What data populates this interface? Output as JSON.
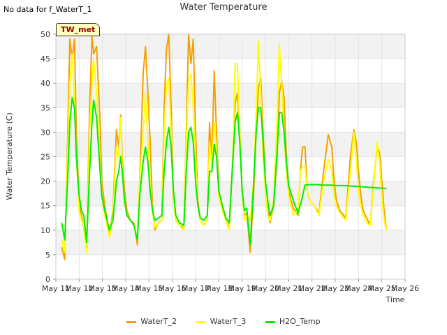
{
  "header": {
    "nodata": "No data for f_WaterT_1",
    "title": "Water Temperature",
    "badge": "TW_met"
  },
  "colors": {
    "WaterT_2": "#f5a000",
    "WaterT_3": "#ffff00",
    "H2O_Temp": "#00ee00"
  },
  "chart_data": {
    "type": "line",
    "title": "Water Temperature",
    "xlabel": "Time",
    "ylabel": "Water Temperature (C)",
    "xlim": [
      11,
      26
    ],
    "ylim": [
      0,
      50
    ],
    "xticks": [
      11,
      12,
      13,
      14,
      15,
      16,
      17,
      18,
      19,
      20,
      21,
      22,
      23,
      24,
      25,
      26
    ],
    "xtick_labels": [
      "May 11",
      "May 12",
      "May 13",
      "May 14",
      "May 15",
      "May 16",
      "May 17",
      "May 18",
      "May 19",
      "May 20",
      "May 21",
      "May 22",
      "May 23",
      "May 24",
      "May 25",
      "May 26"
    ],
    "yticks": [
      0,
      5,
      10,
      15,
      20,
      25,
      30,
      35,
      40,
      45,
      50
    ],
    "grid": true,
    "legend": "bottom",
    "series": [
      {
        "name": "WaterT_2",
        "x": [
          11.25,
          11.38,
          11.5,
          11.6,
          11.7,
          11.8,
          11.88,
          12.0,
          12.1,
          12.2,
          12.32,
          12.45,
          12.55,
          12.62,
          12.75,
          12.9,
          12.97,
          13.1,
          13.3,
          13.45,
          13.6,
          13.7,
          13.78,
          13.85,
          13.95,
          14.05,
          14.2,
          14.35,
          14.5,
          14.6,
          14.75,
          14.85,
          14.95,
          15.05,
          15.15,
          15.25,
          15.4,
          15.55,
          15.65,
          15.75,
          15.85,
          15.95,
          16.05,
          16.15,
          16.3,
          16.5,
          16.6,
          16.7,
          16.8,
          16.9,
          17.0,
          17.1,
          17.2,
          17.35,
          17.5,
          17.6,
          17.7,
          17.8,
          17.9,
          18.0,
          18.15,
          18.3,
          18.45,
          18.6,
          18.7,
          18.8,
          18.9,
          19.0,
          19.1,
          19.2,
          19.35,
          19.5,
          19.6,
          19.7,
          19.8,
          19.9,
          20.0,
          20.1,
          20.2,
          20.35,
          20.5,
          20.6,
          20.7,
          20.8,
          20.9,
          21.0,
          21.1,
          21.2,
          21.4,
          21.5,
          21.6,
          21.7,
          21.8,
          21.9,
          22.1,
          22.3,
          22.5,
          22.7,
          22.85,
          22.95,
          23.05,
          23.2,
          23.45,
          23.65,
          23.8,
          23.9,
          24.0,
          24.1,
          24.2,
          24.35,
          24.5,
          24.65,
          24.8,
          24.9,
          25.0,
          25.1,
          25.2
        ],
        "y": [
          6.5,
          4.0,
          28.0,
          49.0,
          45.0,
          49.0,
          30.0,
          15.0,
          13.0,
          10.5,
          6.0,
          35.0,
          49.5,
          46.0,
          47.5,
          32.0,
          20.0,
          15.0,
          9.0,
          14.0,
          30.5,
          27.0,
          33.5,
          25.0,
          18.0,
          14.0,
          12.0,
          11.5,
          7.0,
          20.0,
          42.0,
          47.5,
          38.0,
          28.0,
          15.0,
          10.0,
          11.5,
          12.0,
          35.0,
          47.0,
          50.0,
          35.0,
          17.0,
          12.0,
          11.0,
          10.5,
          30.0,
          50.0,
          44.0,
          49.0,
          30.0,
          16.0,
          12.0,
          11.0,
          12.0,
          32.0,
          24.0,
          42.5,
          30.0,
          18.0,
          15.0,
          12.0,
          10.5,
          25.0,
          36.0,
          38.0,
          30.0,
          18.0,
          13.0,
          13.5,
          5.5,
          18.0,
          30.0,
          39.0,
          41.0,
          30.0,
          20.0,
          14.0,
          11.5,
          15.0,
          25.0,
          38.0,
          40.5,
          37.0,
          25.0,
          18.0,
          16.0,
          14.5,
          13.0,
          22.0,
          27.0,
          27.0,
          18.0,
          16.0,
          15.0,
          13.5,
          22.0,
          29.5,
          27.0,
          20.0,
          16.0,
          14.0,
          12.5,
          25.0,
          30.5,
          28.0,
          22.0,
          17.0,
          14.0,
          12.5,
          11.0,
          20.0,
          27.0,
          26.0,
          20.0,
          14.0,
          10.0
        ]
      },
      {
        "name": "WaterT_3",
        "x": [
          11.25,
          11.38,
          11.5,
          11.6,
          11.7,
          11.8,
          11.88,
          12.0,
          12.1,
          12.2,
          12.32,
          12.45,
          12.55,
          12.62,
          12.75,
          12.9,
          12.97,
          13.1,
          13.3,
          13.45,
          13.6,
          13.7,
          13.78,
          13.85,
          13.95,
          14.05,
          14.2,
          14.35,
          14.5,
          14.6,
          14.75,
          14.85,
          14.95,
          15.05,
          15.15,
          15.25,
          15.4,
          15.55,
          15.65,
          15.75,
          15.85,
          15.95,
          16.05,
          16.15,
          16.3,
          16.5,
          16.6,
          16.7,
          16.8,
          16.9,
          17.0,
          17.1,
          17.2,
          17.35,
          17.5,
          17.6,
          17.7,
          17.8,
          17.9,
          18.0,
          18.15,
          18.3,
          18.45,
          18.6,
          18.7,
          18.8,
          18.9,
          19.0,
          19.1,
          19.2,
          19.35,
          19.5,
          19.6,
          19.7,
          19.8,
          19.9,
          20.0,
          20.1,
          20.2,
          20.35,
          20.5,
          20.6,
          20.7,
          20.8,
          20.9,
          21.0,
          21.1,
          21.2,
          21.4,
          21.5,
          21.6,
          21.7,
          21.8,
          21.9,
          22.1,
          22.3,
          22.5,
          22.7,
          22.85,
          22.95,
          23.05,
          23.2,
          23.45,
          23.65,
          23.8,
          23.9,
          24.0,
          24.1,
          24.2,
          24.35,
          24.5,
          24.65,
          24.8,
          24.9,
          25.0,
          25.1,
          25.2
        ],
        "y": [
          8.0,
          5.5,
          25.0,
          40.0,
          46.0,
          37.0,
          25.0,
          14.0,
          12.0,
          11.0,
          5.5,
          30.0,
          40.0,
          45.0,
          38.0,
          24.0,
          17.0,
          13.0,
          8.5,
          13.0,
          27.0,
          25.0,
          33.0,
          23.0,
          16.0,
          13.0,
          12.0,
          11.0,
          8.0,
          20.0,
          30.0,
          38.0,
          28.0,
          20.0,
          14.0,
          10.5,
          11.5,
          12.0,
          30.0,
          40.0,
          41.0,
          30.0,
          16.0,
          12.0,
          11.0,
          10.0,
          28.0,
          40.0,
          42.0,
          35.0,
          25.0,
          15.0,
          12.0,
          11.0,
          12.0,
          28.0,
          23.0,
          32.0,
          27.0,
          17.0,
          14.0,
          12.0,
          10.0,
          25.0,
          44.0,
          44.0,
          30.0,
          18.0,
          12.0,
          13.0,
          12.0,
          20.0,
          34.0,
          48.5,
          38.0,
          25.0,
          18.0,
          13.0,
          12.0,
          16.0,
          32.0,
          48.0,
          40.0,
          30.0,
          22.0,
          17.0,
          15.0,
          13.0,
          14.0,
          22.0,
          23.0,
          23.0,
          18.0,
          16.0,
          15.0,
          13.0,
          20.0,
          24.5,
          22.0,
          17.0,
          15.0,
          13.5,
          12.0,
          22.0,
          30.0,
          25.0,
          18.0,
          15.0,
          13.0,
          11.5,
          11.0,
          19.0,
          28.0,
          24.0,
          17.0,
          12.0,
          10.0
        ]
      },
      {
        "name": "H2O_Temp",
        "x": [
          11.25,
          11.38,
          11.5,
          11.6,
          11.7,
          11.8,
          11.88,
          12.0,
          12.1,
          12.2,
          12.32,
          12.45,
          12.55,
          12.62,
          12.75,
          12.9,
          12.97,
          13.1,
          13.3,
          13.45,
          13.6,
          13.7,
          13.78,
          13.85,
          13.95,
          14.05,
          14.2,
          14.35,
          14.5,
          14.6,
          14.75,
          14.85,
          14.95,
          15.05,
          15.15,
          15.25,
          15.4,
          15.55,
          15.65,
          15.75,
          15.85,
          15.95,
          16.05,
          16.15,
          16.3,
          16.5,
          16.6,
          16.7,
          16.8,
          16.9,
          17.0,
          17.1,
          17.2,
          17.35,
          17.5,
          17.6,
          17.7,
          17.8,
          17.9,
          18.0,
          18.15,
          18.3,
          18.45,
          18.6,
          18.7,
          18.8,
          18.9,
          19.0,
          19.1,
          19.2,
          19.35,
          19.5,
          19.6,
          19.7,
          19.8,
          19.9,
          20.0,
          20.1,
          20.2,
          20.35,
          20.5,
          20.6,
          20.7,
          20.8,
          20.9,
          21.0,
          21.1,
          21.2,
          21.4,
          21.55,
          21.7,
          21.9,
          22.2,
          22.5,
          22.8,
          23.1,
          23.4,
          23.7,
          24.0,
          24.3,
          24.6,
          24.9,
          25.2
        ],
        "y": [
          11.5,
          8.0,
          20.0,
          32.0,
          37.0,
          35.0,
          25.0,
          17.0,
          14.0,
          13.0,
          7.5,
          22.0,
          32.0,
          36.5,
          33.0,
          22.0,
          17.0,
          14.0,
          10.0,
          12.0,
          20.0,
          22.0,
          25.0,
          22.0,
          16.0,
          13.0,
          12.0,
          11.0,
          8.0,
          17.0,
          24.0,
          27.0,
          24.0,
          18.0,
          14.0,
          12.0,
          12.5,
          13.0,
          22.0,
          28.0,
          31.0,
          27.0,
          18.0,
          13.0,
          11.5,
          11.0,
          22.0,
          30.0,
          31.0,
          28.0,
          20.0,
          15.0,
          12.5,
          12.0,
          13.0,
          22.0,
          22.0,
          27.5,
          25.0,
          18.0,
          15.0,
          12.5,
          11.5,
          24.0,
          32.0,
          34.0,
          28.0,
          18.0,
          14.0,
          14.5,
          7.0,
          20.0,
          30.0,
          35.0,
          35.0,
          28.0,
          20.0,
          16.0,
          13.0,
          15.0,
          26.0,
          34.0,
          34.0,
          30.0,
          24.0,
          19.0,
          17.5,
          16.0,
          13.5,
          16.0,
          19.2,
          19.3,
          19.3,
          19.2,
          19.2,
          19.1,
          19.1,
          19.0,
          18.9,
          18.8,
          18.7,
          18.6,
          18.5
        ]
      }
    ]
  }
}
